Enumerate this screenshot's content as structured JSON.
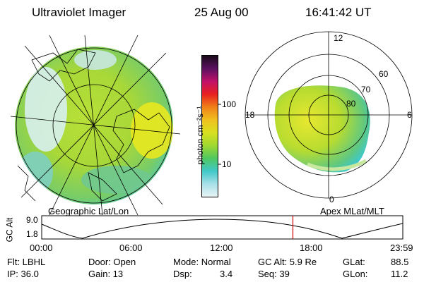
{
  "header": {
    "title": "Ultraviolet Imager",
    "date": "25 Aug 00",
    "time": "16:41:42 UT"
  },
  "left_map": {
    "caption": "Geographic Lat/Lon"
  },
  "colorbar": {
    "unit_label": "photon cm⁻²s⁻¹",
    "tick_100": "100",
    "tick_10": "10",
    "colors": [
      "#1a0a1a",
      "#5a1060",
      "#c0106a",
      "#e82020",
      "#f08018",
      "#f0c020",
      "#d8e020",
      "#a0d830",
      "#50c860",
      "#40c8c8",
      "#a8e0e8",
      "#e8f4f6"
    ]
  },
  "polar_plot": {
    "caption": "Apex MLat/MLT",
    "mlt_top": "12",
    "mlt_left": "18",
    "mlt_right": "6",
    "mlt_bottom": "0",
    "lat_60": "60",
    "lat_70": "70",
    "lat_80": "80"
  },
  "timeline": {
    "ylabel": "GC Alt",
    "y_top": "9.0",
    "y_bottom": "1.8",
    "ticks": [
      "00:00",
      "06:00",
      "12:00",
      "18:00",
      "23:59"
    ],
    "marker_time": "16:41",
    "marker_color": "#d00000"
  },
  "status": {
    "flt": "Flt: LBHL",
    "ip": "IP: 36.0",
    "door": "Door: Open",
    "gain": "Gain: 13",
    "mode": "Mode: Normal",
    "dsp_label": "Dsp:",
    "dsp_value": "3.4",
    "gcalt": "GC Alt: 5.9 Re",
    "seq": "Seq: 39",
    "glat_label": "GLat:",
    "glat_value": "88.5",
    "glon_label": "GLon:",
    "glon_value": "11.2"
  }
}
